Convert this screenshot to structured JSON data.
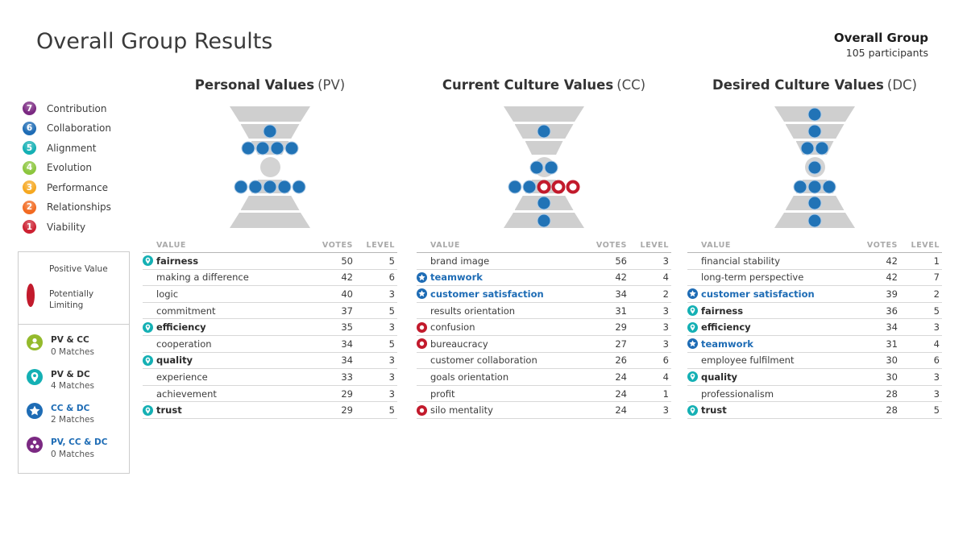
{
  "header": {
    "title": "Overall Group Results",
    "group_name": "Overall Group",
    "participants": "105 participants"
  },
  "levels_key": [
    {
      "num": "7",
      "label": "Contribution",
      "color": "#7b2982"
    },
    {
      "num": "6",
      "label": "Collaboration",
      "color": "#1e6cb5"
    },
    {
      "num": "5",
      "label": "Alignment",
      "color": "#14b0b4"
    },
    {
      "num": "4",
      "label": "Evolution",
      "color": "#8cc63e"
    },
    {
      "num": "3",
      "label": "Performance",
      "color": "#f6a821"
    },
    {
      "num": "2",
      "label": "Relationships",
      "color": "#f26a21"
    },
    {
      "num": "1",
      "label": "Viability",
      "color": "#cd2031"
    }
  ],
  "legend": {
    "positive_label": "Positive Value",
    "limiting_label": "Potentially Limiting",
    "matches": [
      {
        "label": "PV & CC",
        "count": "0 Matches"
      },
      {
        "label": "PV & DC",
        "count": "4 Matches"
      },
      {
        "label": "CC & DC",
        "count": "2 Matches"
      },
      {
        "label": "PV, CC & DC",
        "count": "0 Matches"
      }
    ]
  },
  "colors": {
    "positive_value": "#1e6cb5",
    "potentially_limiting": "#c21a2c",
    "match_pv_cc": "#94ba2c",
    "match_pv_dc": "#14b0b4",
    "match_cc_dc": "#1e6cb5",
    "match_pv_cc_dc": "#7b2982",
    "funnel_shape": "#cfcfcf"
  },
  "chart_data": {
    "type": "table",
    "panels": [
      {
        "id": "PV",
        "title_bold": "Personal Values",
        "title_paren": "(PV)",
        "columns": [
          "VALUE",
          "VOTES",
          "LEVEL"
        ],
        "funnel": {
          "l7": [],
          "l6": [
            "pos"
          ],
          "l5": [
            "pos",
            "pos",
            "pos",
            "pos"
          ],
          "l4": [],
          "l3": [
            "pos",
            "pos",
            "pos",
            "pos",
            "pos"
          ],
          "l2": [],
          "l1": []
        },
        "rows": [
          {
            "match": "pv-dc",
            "value": "fairness",
            "votes": 50,
            "level": 5
          },
          {
            "match": "",
            "value": "making a difference",
            "votes": 42,
            "level": 6
          },
          {
            "match": "",
            "value": "logic",
            "votes": 40,
            "level": 3
          },
          {
            "match": "",
            "value": "commitment",
            "votes": 37,
            "level": 5
          },
          {
            "match": "pv-dc",
            "value": "efficiency",
            "votes": 35,
            "level": 3
          },
          {
            "match": "",
            "value": "cooperation",
            "votes": 34,
            "level": 5
          },
          {
            "match": "pv-dc",
            "value": "quality",
            "votes": 34,
            "level": 3
          },
          {
            "match": "",
            "value": "experience",
            "votes": 33,
            "level": 3
          },
          {
            "match": "",
            "value": "achievement",
            "votes": 29,
            "level": 3
          },
          {
            "match": "pv-dc",
            "value": "trust",
            "votes": 29,
            "level": 5
          }
        ]
      },
      {
        "id": "CC",
        "title_bold": "Current Culture Values",
        "title_paren": "(CC)",
        "columns": [
          "VALUE",
          "VOTES",
          "LEVEL"
        ],
        "funnel": {
          "l7": [],
          "l6": [
            "pos"
          ],
          "l5": [],
          "l4": [
            "pos",
            "pos"
          ],
          "l3": [
            "pos",
            "pos",
            "neg",
            "neg",
            "neg"
          ],
          "l2": [
            "pos"
          ],
          "l1": [
            "pos"
          ]
        },
        "rows": [
          {
            "match": "",
            "value": "brand image",
            "votes": 56,
            "level": 3
          },
          {
            "match": "cc-dc",
            "value": "teamwork",
            "votes": 42,
            "level": 4
          },
          {
            "match": "cc-dc",
            "value": "customer satisfaction",
            "votes": 34,
            "level": 2
          },
          {
            "match": "",
            "value": "results orientation",
            "votes": 31,
            "level": 3
          },
          {
            "match": "limiting",
            "value": "confusion",
            "votes": 29,
            "level": 3
          },
          {
            "match": "limiting",
            "value": "bureaucracy",
            "votes": 27,
            "level": 3
          },
          {
            "match": "",
            "value": "customer collaboration",
            "votes": 26,
            "level": 6
          },
          {
            "match": "",
            "value": "goals orientation",
            "votes": 24,
            "level": 4
          },
          {
            "match": "",
            "value": "profit",
            "votes": 24,
            "level": 1
          },
          {
            "match": "limiting",
            "value": "silo mentality",
            "votes": 24,
            "level": 3
          }
        ]
      },
      {
        "id": "DC",
        "title_bold": "Desired Culture Values",
        "title_paren": "(DC)",
        "columns": [
          "VALUE",
          "VOTES",
          "LEVEL"
        ],
        "funnel": {
          "l7": [
            "pos"
          ],
          "l6": [
            "pos"
          ],
          "l5": [
            "pos",
            "pos"
          ],
          "l4": [
            "pos"
          ],
          "l3": [
            "pos",
            "pos",
            "pos"
          ],
          "l2": [
            "pos"
          ],
          "l1": [
            "pos"
          ]
        },
        "rows": [
          {
            "match": "",
            "value": "financial stability",
            "votes": 42,
            "level": 1
          },
          {
            "match": "",
            "value": "long-term perspective",
            "votes": 42,
            "level": 7
          },
          {
            "match": "cc-dc",
            "value": "customer satisfaction",
            "votes": 39,
            "level": 2
          },
          {
            "match": "pv-dc",
            "value": "fairness",
            "votes": 36,
            "level": 5
          },
          {
            "match": "pv-dc",
            "value": "efficiency",
            "votes": 34,
            "level": 3
          },
          {
            "match": "cc-dc",
            "value": "teamwork",
            "votes": 31,
            "level": 4
          },
          {
            "match": "",
            "value": "employee fulfilment",
            "votes": 30,
            "level": 6
          },
          {
            "match": "pv-dc",
            "value": "quality",
            "votes": 30,
            "level": 3
          },
          {
            "match": "",
            "value": "professionalism",
            "votes": 28,
            "level": 3
          },
          {
            "match": "pv-dc",
            "value": "trust",
            "votes": 28,
            "level": 5
          }
        ]
      }
    ]
  }
}
